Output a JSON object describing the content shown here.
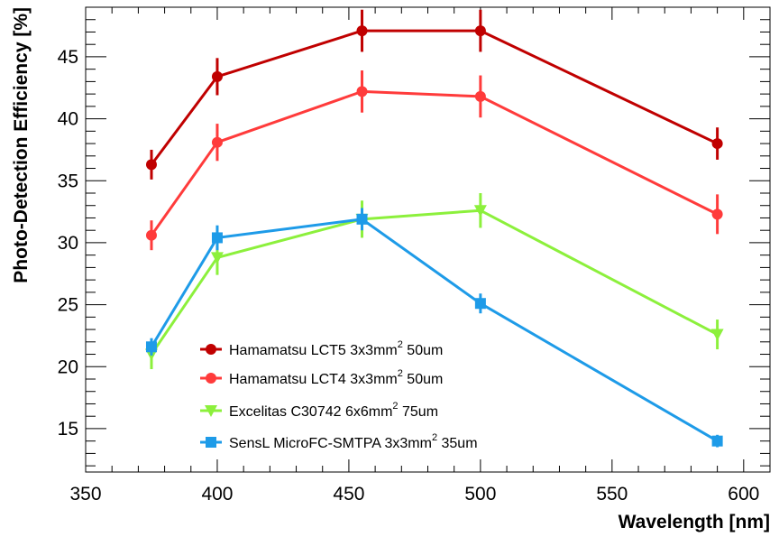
{
  "chart_data": {
    "type": "line",
    "xlabel": "Wavelength [nm]",
    "ylabel": "Photo-Detection Efficiency [%]",
    "xlim": [
      350,
      610
    ],
    "ylim": [
      11.5,
      49
    ],
    "x_ticks": [
      350,
      400,
      450,
      500,
      550,
      600
    ],
    "y_ticks": [
      15,
      20,
      25,
      30,
      35,
      40,
      45
    ],
    "grid": false,
    "legend_position": "bottom-center",
    "series": [
      {
        "name": "Hamamatsu LCT5 3x3mm",
        "name_sup": "2",
        "name_suffix": " 50um",
        "color": "#c00000",
        "marker": "circle",
        "x": [
          375,
          400,
          455,
          500,
          590
        ],
        "y": [
          36.3,
          43.4,
          47.1,
          47.1,
          38.0
        ],
        "err": [
          1.2,
          1.5,
          1.7,
          1.7,
          1.3
        ]
      },
      {
        "name": "Hamamatsu LCT4 3x3mm",
        "name_sup": "2",
        "name_suffix": " 50um",
        "color": "#ff3b3b",
        "marker": "circle",
        "x": [
          375,
          400,
          455,
          500,
          590
        ],
        "y": [
          30.6,
          38.1,
          42.2,
          41.8,
          32.3
        ],
        "err": [
          1.2,
          1.5,
          1.7,
          1.7,
          1.6
        ]
      },
      {
        "name": "Excelitas C30742 6x6mm",
        "name_sup": "2",
        "name_suffix": " 75um",
        "color": "#8cf03c",
        "marker": "triangle-down",
        "x": [
          375,
          400,
          455,
          500,
          590
        ],
        "y": [
          21.0,
          28.8,
          31.9,
          32.6,
          22.6
        ],
        "err": [
          1.2,
          1.4,
          1.5,
          1.4,
          1.2
        ]
      },
      {
        "name": "SensL MicroFC-SMTPA 3x3mm",
        "name_sup": "2",
        "name_suffix": " 35um",
        "color": "#1e9be8",
        "marker": "square",
        "x": [
          375,
          400,
          455,
          500,
          590
        ],
        "y": [
          21.6,
          30.4,
          31.9,
          25.1,
          14.0
        ],
        "err": [
          0.7,
          1.0,
          0.9,
          0.8,
          0.5
        ]
      }
    ]
  }
}
